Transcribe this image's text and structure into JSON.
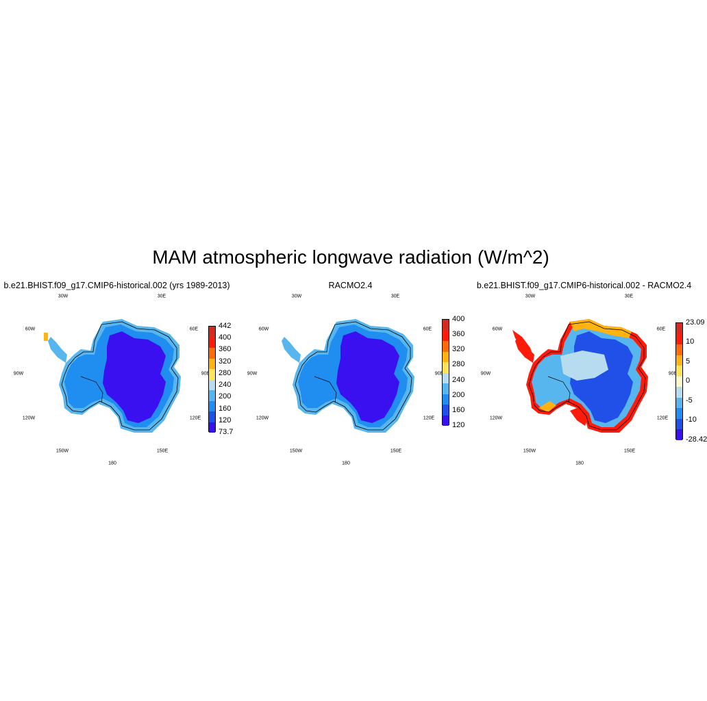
{
  "title": "MAM atmospheric longwave radiation (W/m^2)",
  "lon_labels": [
    "30W",
    "30E",
    "60W",
    "60E",
    "90W",
    "90E",
    "120W",
    "120E",
    "150W",
    "150E",
    "180"
  ],
  "panels": [
    {
      "title": "b.e21.BHIST.f09_g17.CMIP6-historical.002 (yrs 1989-2013)",
      "colorbar": {
        "labels": [
          "442",
          "400",
          "360",
          "320",
          "280",
          "240",
          "200",
          "160",
          "120",
          "73.7"
        ],
        "colors": [
          "#d62a20",
          "#ff1a0a",
          "#ff6a0a",
          "#ffb310",
          "#ffe35c",
          "#b7dcef",
          "#57b6ee",
          "#1f8ef0",
          "#2150e8",
          "#3b10f0"
        ]
      },
      "fill": {
        "interior": "#3b10f0",
        "mid": "#1f8ef0",
        "edge": "#57b6ee",
        "accent": "#ffb310"
      }
    },
    {
      "title": "RACMO2.4",
      "colorbar": {
        "labels": [
          "400",
          "360",
          "320",
          "280",
          "240",
          "200",
          "160",
          "120"
        ],
        "colors": [
          "#d62a20",
          "#ff1a0a",
          "#ff6a0a",
          "#ffb310",
          "#ffe35c",
          "#b7dcef",
          "#57b6ee",
          "#1f8ef0",
          "#2150e8",
          "#3b10f0"
        ]
      },
      "fill": {
        "interior": "#3b10f0",
        "mid": "#1f8ef0",
        "edge": "#57b6ee",
        "accent": "#57b6ee"
      }
    },
    {
      "title": "b.e21.BHIST.f09_g17.CMIP6-historical.002 - RACMO2.4",
      "colorbar": {
        "labels": [
          "23.09",
          "10",
          "5",
          "0",
          "-5",
          "-10",
          "-28.42"
        ],
        "colors": [
          "#d62a20",
          "#ff1a0a",
          "#ff6a0a",
          "#ffb310",
          "#ffe35c",
          "#fffbc8",
          "#b7dcef",
          "#57b6ee",
          "#1f8ef0",
          "#2150e8",
          "#3b10f0"
        ]
      },
      "fill": {
        "interior": "#2150e8",
        "mid": "#57b6ee",
        "edge": "#ff1a0a",
        "accent": "#ffe35c"
      }
    }
  ]
}
